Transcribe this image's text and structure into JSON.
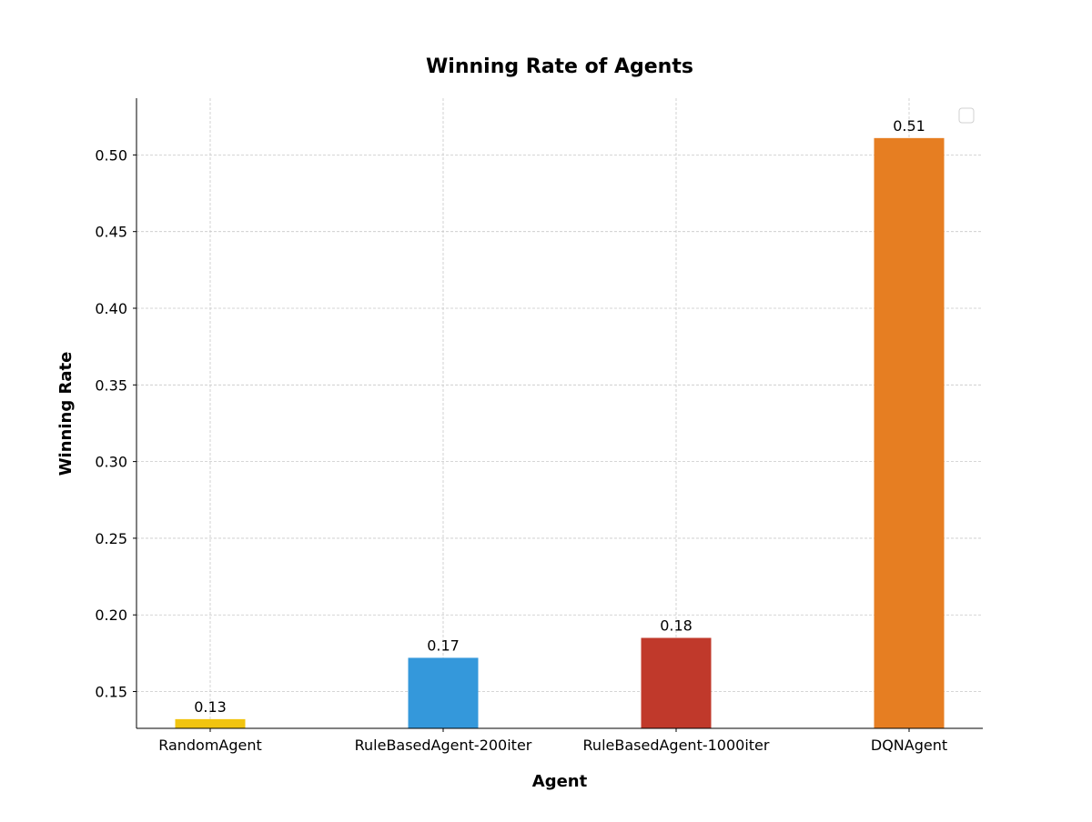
{
  "chart_data": {
    "type": "bar",
    "title": "Winning Rate of Agents",
    "xlabel": "Agent",
    "ylabel": "Winning Rate",
    "categories": [
      "RandomAgent",
      "RuleBasedAgent-200iter",
      "RuleBasedAgent-1000iter",
      "DQNAgent"
    ],
    "values": [
      0.132,
      0.172,
      0.185,
      0.511
    ],
    "data_labels": [
      "0.13",
      "0.17",
      "0.18",
      "0.51"
    ],
    "colors": [
      "#f1c40f",
      "#3498db",
      "#c0392b",
      "#e67e22"
    ],
    "ylim": [
      0.126,
      0.537
    ],
    "yticks": [
      0.15,
      0.2,
      0.25,
      0.3,
      0.35,
      0.4,
      0.45,
      0.5
    ],
    "ytick_labels": [
      "0.15",
      "0.20",
      "0.25",
      "0.30",
      "0.35",
      "0.40",
      "0.45",
      "0.50"
    ],
    "grid": true,
    "legend": {
      "placement": "top-right",
      "entries": []
    }
  }
}
